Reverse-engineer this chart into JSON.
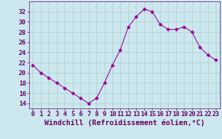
{
  "x": [
    0,
    1,
    2,
    3,
    4,
    5,
    6,
    7,
    8,
    9,
    10,
    11,
    12,
    13,
    14,
    15,
    16,
    17,
    18,
    19,
    20,
    21,
    22,
    23
  ],
  "y": [
    21.5,
    20.0,
    19.0,
    18.0,
    17.0,
    16.0,
    15.0,
    14.0,
    15.0,
    18.0,
    21.5,
    24.5,
    29.0,
    31.0,
    32.5,
    32.0,
    29.5,
    28.5,
    28.5,
    29.0,
    28.0,
    25.0,
    23.5,
    22.5
  ],
  "line_color": "#990099",
  "marker": "D",
  "marker_size": 2.5,
  "bg_color": "#cce8ee",
  "grid_color": "#aacccc",
  "xlabel": "Windchill (Refroidissement éolien,°C)",
  "xlabel_fontsize": 7.5,
  "ylim": [
    13,
    34
  ],
  "xlim": [
    -0.5,
    23.5
  ],
  "yticks": [
    14,
    16,
    18,
    20,
    22,
    24,
    26,
    28,
    30,
    32
  ],
  "xticks": [
    0,
    1,
    2,
    3,
    4,
    5,
    6,
    7,
    8,
    9,
    10,
    11,
    12,
    13,
    14,
    15,
    16,
    17,
    18,
    19,
    20,
    21,
    22,
    23
  ],
  "tick_color": "#660066",
  "tick_fontsize": 6.5
}
